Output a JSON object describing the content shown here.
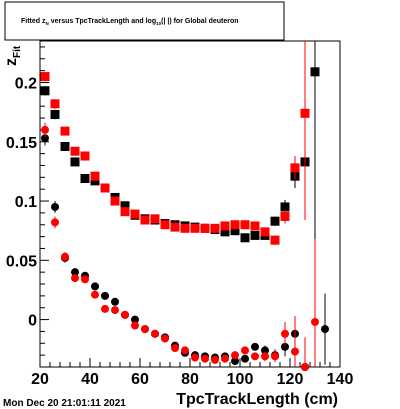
{
  "chart_data": {
    "type": "scatter",
    "title_parts": {
      "a": "Fitted  z",
      "a_sub": "N",
      "b": " versus TpcTrackLength and log",
      "b_sub": "10",
      "c": "(| |) for Global deuteron"
    },
    "xlabel": "TpcTrackLength (cm)",
    "ylabel": "z",
    "ylabel_sub": "Fit",
    "xlim": [
      20,
      140
    ],
    "ylim": [
      -0.04,
      0.235
    ],
    "x_ticks": [
      20,
      40,
      60,
      80,
      100,
      120,
      140
    ],
    "y_ticks": [
      0,
      0.05,
      0.1,
      0.15,
      0.2
    ],
    "x_tick_labels": [
      "20",
      "40",
      "60",
      "80",
      "100",
      "120",
      "140"
    ],
    "y_tick_labels": [
      "0",
      "0.05",
      "0.1",
      "0.15",
      "0.2"
    ],
    "footer": "Mon Dec 20 21:01:11 2021",
    "series": [
      {
        "marker": "square",
        "color": "#000000",
        "points": [
          [
            22,
            0.193,
            0.004
          ],
          [
            26,
            0.173,
            0.004
          ],
          [
            30,
            0.146,
            0.003
          ],
          [
            34,
            0.133,
            0.003
          ],
          [
            38,
            0.119,
            0.002
          ],
          [
            42,
            0.117,
            0.002
          ],
          [
            46,
            0.111,
            0.002
          ],
          [
            50,
            0.103,
            0.002
          ],
          [
            54,
            0.096,
            0.002
          ],
          [
            58,
            0.088,
            0.002
          ],
          [
            62,
            0.085,
            0.002
          ],
          [
            66,
            0.084,
            0.002
          ],
          [
            70,
            0.081,
            0.002
          ],
          [
            74,
            0.08,
            0.002
          ],
          [
            78,
            0.079,
            0.002
          ],
          [
            82,
            0.078,
            0.002
          ],
          [
            86,
            0.077,
            0.002
          ],
          [
            90,
            0.076,
            0.002
          ],
          [
            94,
            0.074,
            0.002
          ],
          [
            98,
            0.075,
            0.002
          ],
          [
            102,
            0.069,
            0.002
          ],
          [
            106,
            0.071,
            0.003
          ],
          [
            110,
            0.071,
            0.003
          ],
          [
            114,
            0.083,
            0.004
          ],
          [
            118,
            0.095,
            0.006
          ],
          [
            122,
            0.121,
            0.01
          ],
          [
            126,
            0.133,
            0.03
          ],
          [
            130,
            0.209,
            0.25
          ]
        ]
      },
      {
        "marker": "square",
        "color": "#ff0000",
        "points": [
          [
            22,
            0.205,
            0.004
          ],
          [
            26,
            0.182,
            0.004
          ],
          [
            30,
            0.159,
            0.003
          ],
          [
            34,
            0.142,
            0.003
          ],
          [
            38,
            0.138,
            0.003
          ],
          [
            42,
            0.121,
            0.002
          ],
          [
            46,
            0.111,
            0.002
          ],
          [
            50,
            0.1,
            0.002
          ],
          [
            54,
            0.091,
            0.002
          ],
          [
            58,
            0.089,
            0.002
          ],
          [
            62,
            0.084,
            0.002
          ],
          [
            66,
            0.085,
            0.002
          ],
          [
            70,
            0.08,
            0.002
          ],
          [
            74,
            0.078,
            0.002
          ],
          [
            78,
            0.077,
            0.002
          ],
          [
            82,
            0.077,
            0.002
          ],
          [
            86,
            0.077,
            0.002
          ],
          [
            90,
            0.077,
            0.002
          ],
          [
            94,
            0.079,
            0.002
          ],
          [
            98,
            0.08,
            0.002
          ],
          [
            102,
            0.08,
            0.002
          ],
          [
            106,
            0.079,
            0.002
          ],
          [
            110,
            0.074,
            0.003
          ],
          [
            114,
            0.067,
            0.004
          ],
          [
            118,
            0.087,
            0.006
          ],
          [
            122,
            0.128,
            0.01
          ],
          [
            126,
            0.174,
            0.09
          ]
        ]
      },
      {
        "marker": "circle",
        "color": "#000000",
        "points": [
          [
            22,
            0.153,
            0.006
          ],
          [
            26,
            0.095,
            0.005
          ],
          [
            30,
            0.052,
            0.004
          ],
          [
            34,
            0.04,
            0.003
          ],
          [
            38,
            0.037,
            0.003
          ],
          [
            42,
            0.028,
            0.002
          ],
          [
            46,
            0.02,
            0.002
          ],
          [
            50,
            0.015,
            0.002
          ],
          [
            54,
            0.004,
            0.002
          ],
          [
            58,
            0.0,
            0.002
          ],
          [
            62,
            -0.008,
            0.002
          ],
          [
            66,
            -0.012,
            0.002
          ],
          [
            70,
            -0.015,
            0.002
          ],
          [
            74,
            -0.022,
            0.002
          ],
          [
            78,
            -0.028,
            0.002
          ],
          [
            82,
            -0.03,
            0.002
          ],
          [
            86,
            -0.031,
            0.002
          ],
          [
            90,
            -0.032,
            0.002
          ],
          [
            94,
            -0.031,
            0.002
          ],
          [
            98,
            -0.035,
            0.003
          ],
          [
            102,
            -0.033,
            0.003
          ],
          [
            106,
            -0.023,
            0.003
          ],
          [
            110,
            -0.026,
            0.004
          ],
          [
            114,
            -0.03,
            0.005
          ],
          [
            118,
            -0.023,
            0.008
          ],
          [
            122,
            -0.012,
            0.012
          ],
          [
            126,
            -0.04,
            0.012
          ],
          [
            130,
            -0.044,
            0.05
          ],
          [
            134,
            -0.008,
            0.03
          ]
        ]
      },
      {
        "marker": "circle",
        "color": "#ff0000",
        "points": [
          [
            22,
            0.16,
            0.006
          ],
          [
            26,
            0.082,
            0.005
          ],
          [
            30,
            0.053,
            0.004
          ],
          [
            34,
            0.035,
            0.003
          ],
          [
            38,
            0.034,
            0.003
          ],
          [
            42,
            0.021,
            0.002
          ],
          [
            46,
            0.009,
            0.002
          ],
          [
            50,
            0.008,
            0.002
          ],
          [
            54,
            0.004,
            0.002
          ],
          [
            58,
            -0.005,
            0.002
          ],
          [
            62,
            -0.008,
            0.002
          ],
          [
            66,
            -0.012,
            0.002
          ],
          [
            70,
            -0.016,
            0.002
          ],
          [
            74,
            -0.024,
            0.002
          ],
          [
            78,
            -0.026,
            0.002
          ],
          [
            82,
            -0.032,
            0.002
          ],
          [
            86,
            -0.033,
            0.002
          ],
          [
            90,
            -0.034,
            0.002
          ],
          [
            94,
            -0.033,
            0.002
          ],
          [
            98,
            -0.03,
            0.003
          ],
          [
            102,
            -0.026,
            0.003
          ],
          [
            106,
            -0.031,
            0.003
          ],
          [
            110,
            -0.031,
            0.004
          ],
          [
            114,
            -0.031,
            0.005
          ],
          [
            118,
            -0.012,
            0.01
          ],
          [
            122,
            -0.027,
            0.03
          ],
          [
            126,
            -0.04,
            0.025
          ],
          [
            130,
            -0.002,
            0.07
          ]
        ]
      }
    ]
  }
}
